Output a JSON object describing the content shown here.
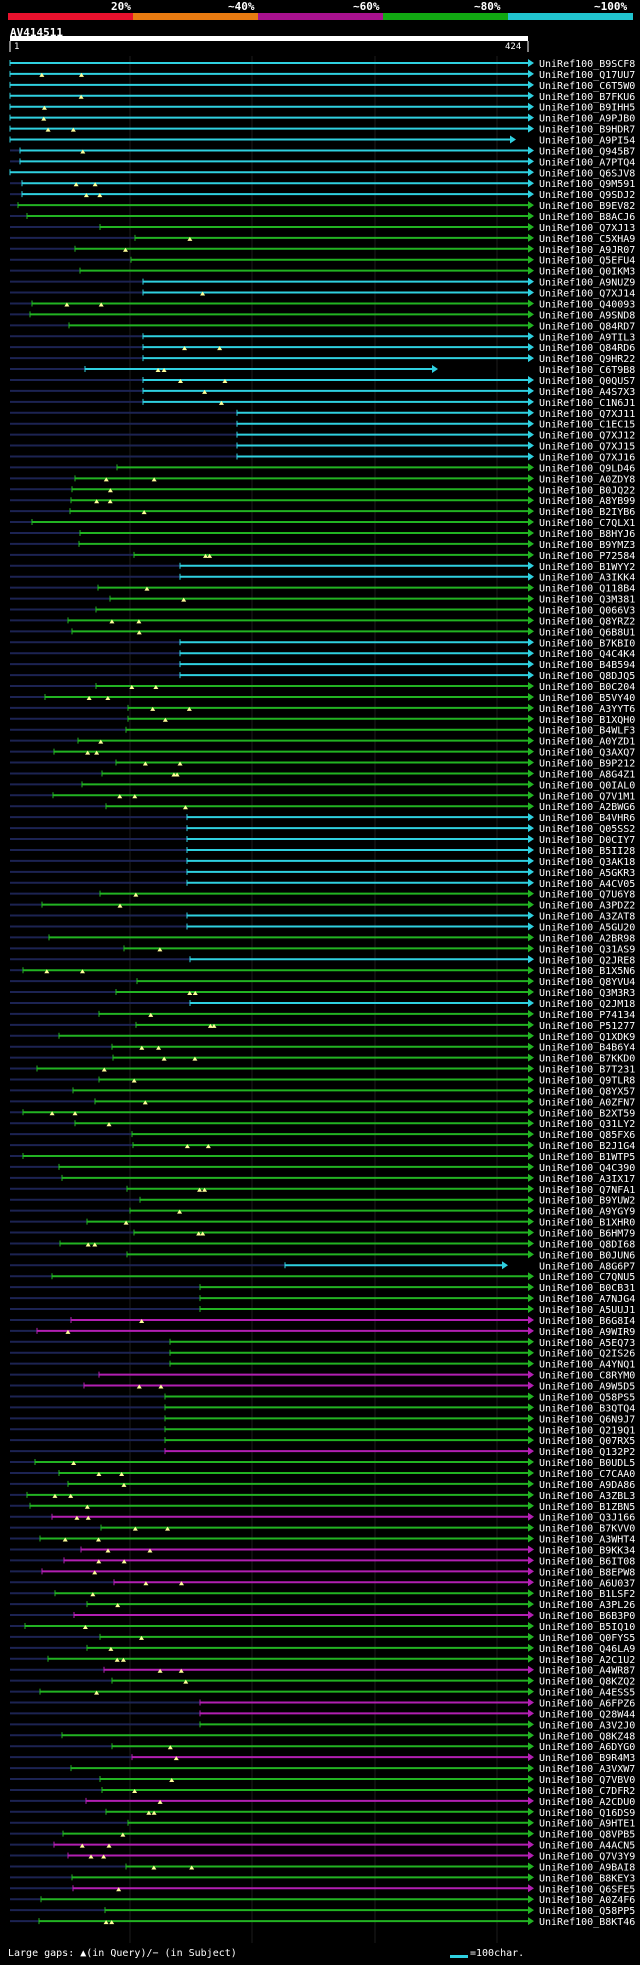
{
  "query": {
    "name": "AV414511",
    "start": "1",
    "end": "424"
  },
  "identity_scale": [
    "20%",
    "~40%",
    "~60%",
    "~80%",
    "~100%"
  ],
  "colors": {
    "bar": [
      "#e8112d",
      "#e87b11",
      "#a8118f",
      "#11a812",
      "#21c4cf"
    ],
    "lines": {
      "cyan": "#2fd0e0",
      "green": "#22b322",
      "magenta": "#b21fb2",
      "navy": "#1c2352"
    }
  },
  "footer": {
    "gaps_text": "Large gaps: ▲(in Query)/− (in Subject)",
    "legend_text": "=100char."
  },
  "hits": [
    "UniRef100_B9SCF8",
    "UniRef100_Q17UU7",
    "UniRef100_C6T5W0",
    "UniRef100_B7FKU6",
    "UniRef100_B9IHH5",
    "UniRef100_A9PJB0",
    "UniRef100_B9HDR7",
    "UniRef100_A9PI54",
    "UniRef100_Q945B7",
    "UniRef100_A7PTQ4",
    "UniRef100_Q6SJV8",
    "UniRef100_Q9M591",
    "UniRef100_Q9SDJ2",
    "UniRef100_B9EV82",
    "UniRef100_B8ACJ6",
    "UniRef100_Q7XJ13",
    "UniRef100_C5XHA9",
    "UniRef100_A9JR07",
    "UniRef100_Q5EFU4",
    "UniRef100_Q0IKM3",
    "UniRef100_A9NUZ9",
    "UniRef100_Q7XJ14",
    "UniRef100_Q40093",
    "UniRef100_A9SND8",
    "UniRef100_Q84RD7",
    "UniRef100_A9TIL3",
    "UniRef100_Q84RD6",
    "UniRef100_Q9HR22",
    "UniRef100_C6T9B8",
    "UniRef100_Q0QUS7",
    "UniRef100_A4S7X3",
    "UniRef100_C1N6J1",
    "UniRef100_Q7XJ11",
    "UniRef100_C1EC15",
    "UniRef100_Q7XJ12",
    "UniRef100_Q7XJ15",
    "UniRef100_Q7XJ16",
    "UniRef100_Q9LD46",
    "UniRef100_A0ZDY8",
    "UniRef100_B0JQ22",
    "UniRef100_A8YB99",
    "UniRef100_B2IYB6",
    "UniRef100_C7QLX1",
    "UniRef100_B8HYJ6",
    "UniRef100_B9YMZ3",
    "UniRef100_P72584",
    "UniRef100_B1WYY2",
    "UniRef100_A3IKK4",
    "UniRef100_Q118B4",
    "UniRef100_Q3M381",
    "UniRef100_Q066V3",
    "UniRef100_Q8YRZ2",
    "UniRef100_Q6B8U1",
    "UniRef100_B7KBI0",
    "UniRef100_Q4C4K4",
    "UniRef100_B4B594",
    "UniRef100_Q8DJQ5",
    "UniRef100_B0C204",
    "UniRef100_B5VY40",
    "UniRef100_A3YYT6",
    "UniRef100_B1XQH0",
    "UniRef100_B4WLF3",
    "UniRef100_A0YZD1",
    "UniRef100_Q3AXQ7",
    "UniRef100_B9P212",
    "UniRef100_A8G4Z1",
    "UniRef100_Q0IAL0",
    "UniRef100_Q7V1M1",
    "UniRef100_A2BWG6",
    "UniRef100_B4VHR6",
    "UniRef100_Q05SS2",
    "UniRef100_D0CIY7",
    "UniRef100_B5II28",
    "UniRef100_Q3AK18",
    "UniRef100_A5GKR3",
    "UniRef100_A4CV05",
    "UniRef100_Q7U6Y8",
    "UniRef100_A3PDZ2",
    "UniRef100_A3ZAT8",
    "UniRef100_A5GU20",
    "UniRef100_A2BR98",
    "UniRef100_Q31AS9",
    "UniRef100_Q2JRE8",
    "UniRef100_B1X5N6",
    "UniRef100_Q8YVU4",
    "UniRef100_Q3M3R3",
    "UniRef100_Q2JM18",
    "UniRef100_P74134",
    "UniRef100_P51277",
    "UniRef100_Q1XDK9",
    "UniRef100_B4B6Y4",
    "UniRef100_B7KKD0",
    "UniRef100_B7T231",
    "UniRef100_Q9TLR8",
    "UniRef100_Q8YX57",
    "UniRef100_A0ZFN7",
    "UniRef100_B2XT59",
    "UniRef100_Q31LY2",
    "UniRef100_Q85FX6",
    "UniRef100_B2J1G4",
    "UniRef100_B1WTP5",
    "UniRef100_Q4C390",
    "UniRef100_A3IX17",
    "UniRef100_Q7NFA1",
    "UniRef100_B9YUW2",
    "UniRef100_A9YGY9",
    "UniRef100_B1XHR0",
    "UniRef100_B6HM79",
    "UniRef100_Q8DI68",
    "UniRef100_B0JUN6",
    "UniRef100_A8G6P7",
    "UniRef100_C7QNU5",
    "UniRef100_B0CB31",
    "UniRef100_A7NJG4",
    "UniRef100_A5UUJ1",
    "UniRef100_B6G8I4",
    "UniRef100_A9WIR9",
    "UniRef100_A5EQ73",
    "UniRef100_Q2IS26",
    "UniRef100_A4YNQ1",
    "UniRef100_C8RYM0",
    "UniRef100_A9W5D5",
    "UniRef100_Q58PS5",
    "UniRef100_B3QTQ4",
    "UniRef100_Q6N9J7",
    "UniRef100_Q219Q1",
    "UniRef100_Q07RX5",
    "UniRef100_Q132P2",
    "UniRef100_B0UDL5",
    "UniRef100_C7CAA0",
    "UniRef100_A9DA86",
    "UniRef100_A3ZBL3",
    "UniRef100_B1ZBN5",
    "UniRef100_Q3J166",
    "UniRef100_B7KVV0",
    "UniRef100_A3WHT4",
    "UniRef100_B9KK34",
    "UniRef100_B6IT08",
    "UniRef100_B8EPW8",
    "UniRef100_A6U037",
    "UniRef100_B1LSF2",
    "UniRef100_A3PL26",
    "UniRef100_B6B3P0",
    "UniRef100_B5IQ10",
    "UniRef100_Q0FYS5",
    "UniRef100_Q46LA9",
    "UniRef100_A2C1U2",
    "UniRef100_A4WR87",
    "UniRef100_Q8KZQ2",
    "UniRef100_A4ESS5",
    "UniRef100_A6FPZ6",
    "UniRef100_Q28W44",
    "UniRef100_A3V2J0",
    "UniRef100_Q8KZ48",
    "UniRef100_A6DYG0",
    "UniRef100_B9R4M3",
    "UniRef100_A3VXW7",
    "UniRef100_Q7VBV0",
    "UniRef100_C7DFR2",
    "UniRef100_A2CDU0",
    "UniRef100_Q16DS9",
    "UniRef100_A9HTE1",
    "UniRef100_Q8VPB5",
    "UniRef100_A4ACN5",
    "UniRef100_Q7V3Y9",
    "UniRef100_A9BAI8",
    "UniRef100_B8KEY3",
    "UniRef100_Q6SFE5",
    "UniRef100_A0Z4F6",
    "UniRef100_Q58PP5",
    "UniRef100_B8KT46"
  ]
}
